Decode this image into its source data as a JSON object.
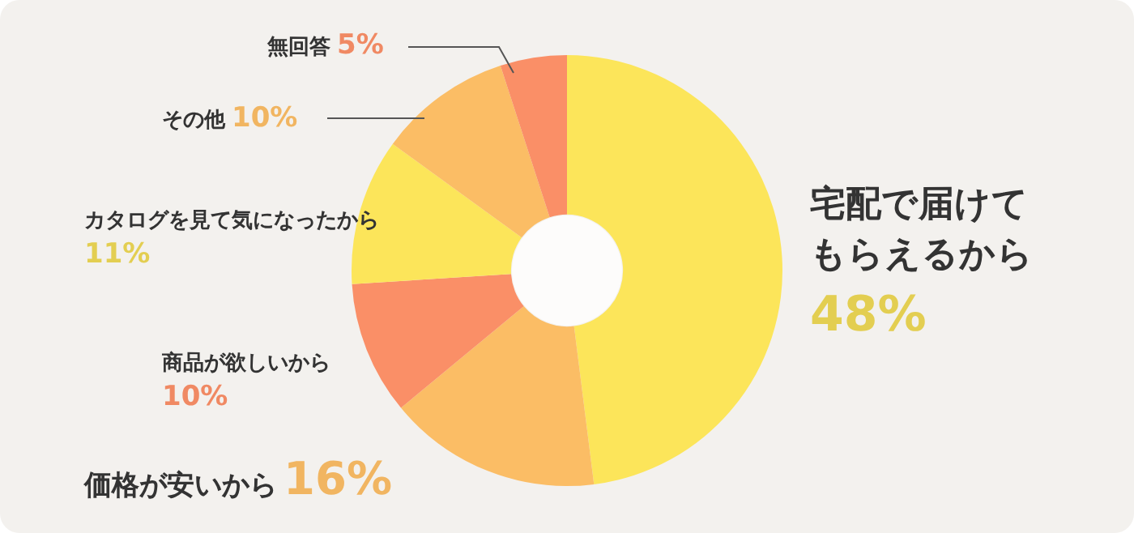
{
  "chart_data": {
    "type": "donut",
    "categories": [
      "宅配で届けてもらえるから",
      "価格が安いから",
      "商品が欲しいから",
      "カタログを見て気になったから",
      "その他",
      "無回答"
    ],
    "values": [
      48,
      16,
      10,
      11,
      10,
      5
    ],
    "colors": [
      "#fce55a",
      "#fbbd65",
      "#fa8f67",
      "#fce55a",
      "#fbbd65",
      "#fa8f67"
    ],
    "value_labels": [
      "48%",
      "16%",
      "10%",
      "11%",
      "10%",
      "5%"
    ],
    "legend": false
  }
}
